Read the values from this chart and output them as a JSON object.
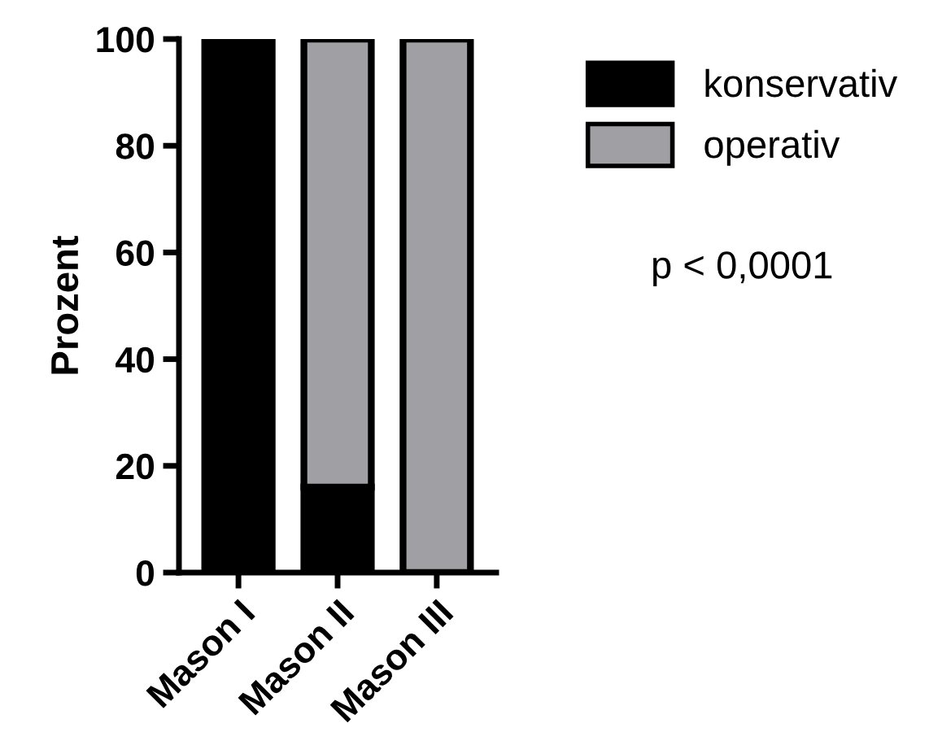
{
  "chart_data": {
    "type": "bar",
    "stacked": true,
    "ylabel": "Prozent",
    "categories": [
      "Mason I",
      "Mason II",
      "Mason III"
    ],
    "series": [
      {
        "name": "konservativ",
        "color": "#000000",
        "values": [
          100,
          16,
          0
        ]
      },
      {
        "name": "operativ",
        "color": "#a09fa4",
        "values": [
          0,
          84,
          100
        ]
      }
    ],
    "ylim": [
      0,
      100
    ],
    "yticks": [
      0,
      20,
      40,
      60,
      80,
      100
    ],
    "grid": false,
    "legend": "top right",
    "annotations": [
      "p < 0,0001"
    ]
  }
}
